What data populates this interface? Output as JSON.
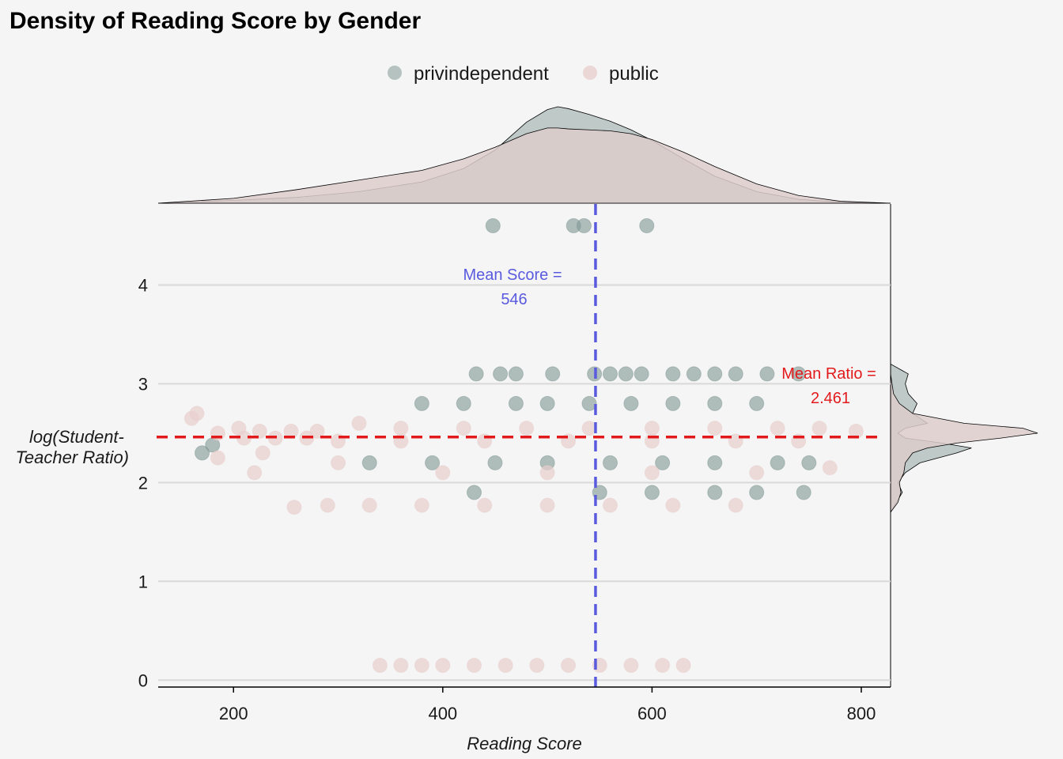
{
  "chart_data": {
    "type": "scatter",
    "title": "Density of Reading Score by Gender",
    "xlabel": "Reading Score",
    "ylabel_lines": [
      "log(Student-",
      "Teacher Ratio)"
    ],
    "xlim": [
      128,
      828
    ],
    "ylim": [
      -0.07,
      4.82
    ],
    "x_ticks": [
      200,
      400,
      600,
      800
    ],
    "y_ticks": [
      0,
      1,
      2,
      3,
      4
    ],
    "grid": "horizontal",
    "legend_position": "top",
    "series": [
      {
        "name": "privindependent",
        "color": "#7f9893",
        "points": [
          [
            448,
            4.6
          ],
          [
            525,
            4.6
          ],
          [
            535,
            4.6
          ],
          [
            595,
            4.6
          ],
          [
            432,
            3.1
          ],
          [
            455,
            3.1
          ],
          [
            470,
            3.1
          ],
          [
            505,
            3.1
          ],
          [
            545,
            3.1
          ],
          [
            560,
            3.1
          ],
          [
            575,
            3.1
          ],
          [
            590,
            3.1
          ],
          [
            620,
            3.1
          ],
          [
            640,
            3.1
          ],
          [
            660,
            3.1
          ],
          [
            680,
            3.1
          ],
          [
            710,
            3.1
          ],
          [
            740,
            3.1
          ],
          [
            380,
            2.8
          ],
          [
            420,
            2.8
          ],
          [
            470,
            2.8
          ],
          [
            500,
            2.8
          ],
          [
            540,
            2.8
          ],
          [
            580,
            2.8
          ],
          [
            620,
            2.8
          ],
          [
            660,
            2.8
          ],
          [
            700,
            2.8
          ],
          [
            170,
            2.3
          ],
          [
            180,
            2.38
          ],
          [
            330,
            2.2
          ],
          [
            390,
            2.2
          ],
          [
            450,
            2.2
          ],
          [
            500,
            2.2
          ],
          [
            560,
            2.2
          ],
          [
            610,
            2.2
          ],
          [
            660,
            2.2
          ],
          [
            720,
            2.2
          ],
          [
            750,
            2.2
          ],
          [
            430,
            1.9
          ],
          [
            550,
            1.9
          ],
          [
            600,
            1.9
          ],
          [
            660,
            1.9
          ],
          [
            700,
            1.9
          ],
          [
            745,
            1.9
          ]
        ]
      },
      {
        "name": "public",
        "color": "#e8cfcd",
        "points": [
          [
            160,
            2.65
          ],
          [
            165,
            2.7
          ],
          [
            185,
            2.5
          ],
          [
            205,
            2.55
          ],
          [
            225,
            2.52
          ],
          [
            255,
            2.52
          ],
          [
            280,
            2.52
          ],
          [
            320,
            2.6
          ],
          [
            360,
            2.55
          ],
          [
            420,
            2.55
          ],
          [
            480,
            2.55
          ],
          [
            540,
            2.55
          ],
          [
            600,
            2.55
          ],
          [
            660,
            2.55
          ],
          [
            720,
            2.55
          ],
          [
            760,
            2.55
          ],
          [
            795,
            2.52
          ],
          [
            210,
            2.45
          ],
          [
            240,
            2.45
          ],
          [
            270,
            2.45
          ],
          [
            300,
            2.42
          ],
          [
            360,
            2.42
          ],
          [
            440,
            2.42
          ],
          [
            520,
            2.42
          ],
          [
            600,
            2.42
          ],
          [
            680,
            2.42
          ],
          [
            740,
            2.42
          ],
          [
            185,
            2.25
          ],
          [
            228,
            2.3
          ],
          [
            220,
            2.1
          ],
          [
            300,
            2.2
          ],
          [
            400,
            2.1
          ],
          [
            500,
            2.1
          ],
          [
            600,
            2.1
          ],
          [
            700,
            2.1
          ],
          [
            770,
            2.15
          ],
          [
            258,
            1.75
          ],
          [
            290,
            1.77
          ],
          [
            330,
            1.77
          ],
          [
            380,
            1.77
          ],
          [
            440,
            1.77
          ],
          [
            500,
            1.77
          ],
          [
            560,
            1.77
          ],
          [
            620,
            1.77
          ],
          [
            680,
            1.77
          ],
          [
            340,
            0.15
          ],
          [
            360,
            0.15
          ],
          [
            380,
            0.15
          ],
          [
            400,
            0.15
          ],
          [
            430,
            0.15
          ],
          [
            460,
            0.15
          ],
          [
            490,
            0.15
          ],
          [
            520,
            0.15
          ],
          [
            550,
            0.15
          ],
          [
            580,
            0.15
          ],
          [
            610,
            0.15
          ],
          [
            630,
            0.15
          ]
        ]
      }
    ],
    "mean_score": {
      "value": 546,
      "label_lines": [
        "Mean Score =",
        "546"
      ],
      "color": "#5a5adf"
    },
    "mean_ratio": {
      "value": 2.461,
      "label_lines": [
        "Mean Ratio =",
        "2.461"
      ],
      "color": "#e31a1c"
    },
    "marginal_top": {
      "x": [
        128,
        200,
        260,
        320,
        380,
        420,
        450,
        480,
        500,
        510,
        520,
        540,
        560,
        580,
        600,
        630,
        660,
        700,
        740,
        780,
        828
      ],
      "privindependent": [
        0.0,
        0.03,
        0.06,
        0.12,
        0.22,
        0.36,
        0.55,
        0.84,
        0.97,
        1.0,
        0.98,
        0.92,
        0.85,
        0.76,
        0.65,
        0.46,
        0.28,
        0.12,
        0.04,
        0.01,
        0.0
      ],
      "public": [
        0.0,
        0.05,
        0.14,
        0.24,
        0.34,
        0.46,
        0.58,
        0.72,
        0.78,
        0.78,
        0.77,
        0.76,
        0.75,
        0.72,
        0.66,
        0.53,
        0.38,
        0.2,
        0.08,
        0.02,
        0.0
      ]
    },
    "marginal_right": {
      "y": [
        1.7,
        1.8,
        1.9,
        2.0,
        2.1,
        2.2,
        2.3,
        2.35,
        2.4,
        2.45,
        2.5,
        2.55,
        2.6,
        2.7,
        2.8,
        2.9,
        3.0,
        3.1,
        3.2
      ],
      "privindependent": [
        0.0,
        0.04,
        0.08,
        0.05,
        0.1,
        0.2,
        0.45,
        0.55,
        0.35,
        0.1,
        0.05,
        0.1,
        0.25,
        0.15,
        0.18,
        0.12,
        0.1,
        0.12,
        0.0
      ],
      "public": [
        0.0,
        0.05,
        0.07,
        0.06,
        0.09,
        0.1,
        0.15,
        0.25,
        0.45,
        0.75,
        1.0,
        0.9,
        0.5,
        0.15,
        0.06,
        0.02,
        0.01,
        0.0,
        0.0
      ]
    }
  }
}
